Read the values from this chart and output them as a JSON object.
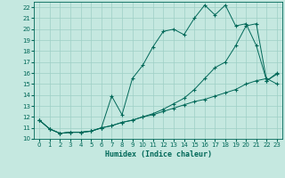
{
  "xlabel": "Humidex (Indice chaleur)",
  "ylabel": "",
  "xlim": [
    -0.5,
    23.5
  ],
  "ylim": [
    10,
    22.5
  ],
  "xticks": [
    0,
    1,
    2,
    3,
    4,
    5,
    6,
    7,
    8,
    9,
    10,
    11,
    12,
    13,
    14,
    15,
    16,
    17,
    18,
    19,
    20,
    21,
    22,
    23
  ],
  "yticks": [
    10,
    11,
    12,
    13,
    14,
    15,
    16,
    17,
    18,
    19,
    20,
    21,
    22
  ],
  "bg_color": "#c5e8e0",
  "line_color": "#006858",
  "grid_color": "#9ecfc5",
  "line1_x": [
    0,
    1,
    2,
    3,
    4,
    5,
    6,
    7,
    8,
    9,
    10,
    11,
    12,
    13,
    14,
    15,
    16,
    17,
    18,
    19,
    20,
    21,
    22,
    23
  ],
  "line1_y": [
    11.7,
    10.9,
    10.5,
    10.6,
    10.6,
    10.7,
    11.0,
    13.9,
    12.2,
    15.5,
    16.7,
    18.4,
    19.8,
    20.0,
    19.5,
    21.0,
    22.2,
    21.3,
    22.2,
    20.3,
    20.5,
    18.5,
    15.3,
    15.9
  ],
  "line2_x": [
    0,
    1,
    2,
    3,
    4,
    5,
    6,
    7,
    8,
    9,
    10,
    11,
    12,
    13,
    14,
    15,
    16,
    17,
    18,
    19,
    20,
    21,
    22,
    23
  ],
  "line2_y": [
    11.7,
    10.9,
    10.5,
    10.6,
    10.6,
    10.7,
    11.0,
    11.2,
    11.5,
    11.7,
    12.0,
    12.2,
    12.5,
    12.8,
    13.1,
    13.4,
    13.6,
    13.9,
    14.2,
    14.5,
    15.0,
    15.3,
    15.5,
    15.0
  ],
  "line3_x": [
    0,
    1,
    2,
    3,
    4,
    5,
    6,
    7,
    8,
    9,
    10,
    11,
    12,
    13,
    14,
    15,
    16,
    17,
    18,
    19,
    20,
    21,
    22,
    23
  ],
  "line3_y": [
    11.7,
    10.9,
    10.5,
    10.6,
    10.6,
    10.7,
    11.0,
    11.2,
    11.5,
    11.7,
    12.0,
    12.3,
    12.7,
    13.2,
    13.7,
    14.5,
    15.5,
    16.5,
    17.0,
    18.5,
    20.3,
    20.5,
    15.3,
    16.0
  ],
  "tick_fontsize": 5.0,
  "xlabel_fontsize": 6.0
}
